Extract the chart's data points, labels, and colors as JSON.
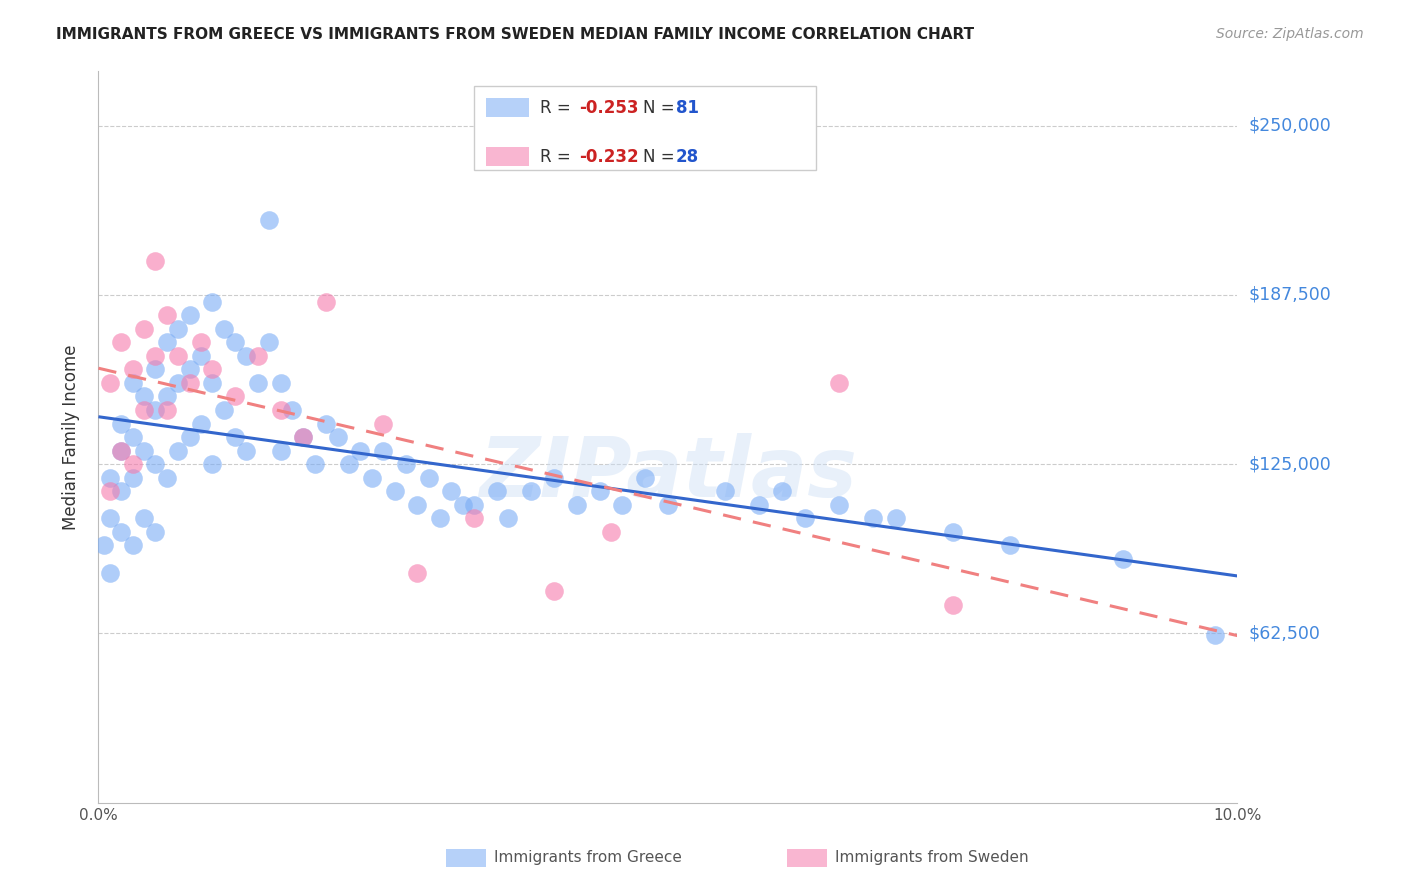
{
  "title": "IMMIGRANTS FROM GREECE VS IMMIGRANTS FROM SWEDEN MEDIAN FAMILY INCOME CORRELATION CHART",
  "source": "Source: ZipAtlas.com",
  "ylabel": "Median Family Income",
  "ytick_labels": [
    "$250,000",
    "$187,500",
    "$125,000",
    "$62,500"
  ],
  "ytick_values": [
    250000,
    187500,
    125000,
    62500
  ],
  "ymin": 0,
  "ymax": 270000,
  "xmin": 0.0,
  "xmax": 0.1,
  "greece_color": "#7aacf5",
  "sweden_color": "#f57aac",
  "greece_line_color": "#3366cc",
  "sweden_line_color": "#f08080",
  "title_fontsize": 11,
  "watermark": "ZIPatlas",
  "legend_r_greece": "-0.253",
  "legend_n_greece": "81",
  "legend_r_sweden": "-0.232",
  "legend_n_sweden": "28",
  "greece_x": [
    0.0005,
    0.001,
    0.001,
    0.001,
    0.002,
    0.002,
    0.002,
    0.002,
    0.003,
    0.003,
    0.003,
    0.003,
    0.004,
    0.004,
    0.004,
    0.005,
    0.005,
    0.005,
    0.005,
    0.006,
    0.006,
    0.006,
    0.007,
    0.007,
    0.007,
    0.008,
    0.008,
    0.008,
    0.009,
    0.009,
    0.01,
    0.01,
    0.01,
    0.011,
    0.011,
    0.012,
    0.012,
    0.013,
    0.013,
    0.014,
    0.015,
    0.015,
    0.016,
    0.016,
    0.017,
    0.018,
    0.019,
    0.02,
    0.021,
    0.022,
    0.023,
    0.024,
    0.025,
    0.026,
    0.027,
    0.028,
    0.029,
    0.03,
    0.031,
    0.032,
    0.033,
    0.035,
    0.036,
    0.038,
    0.04,
    0.042,
    0.044,
    0.046,
    0.048,
    0.05,
    0.055,
    0.058,
    0.06,
    0.062,
    0.065,
    0.068,
    0.07,
    0.075,
    0.08,
    0.09,
    0.098
  ],
  "greece_y": [
    95000,
    120000,
    105000,
    85000,
    140000,
    130000,
    115000,
    100000,
    155000,
    135000,
    120000,
    95000,
    150000,
    130000,
    105000,
    160000,
    145000,
    125000,
    100000,
    170000,
    150000,
    120000,
    175000,
    155000,
    130000,
    180000,
    160000,
    135000,
    165000,
    140000,
    185000,
    155000,
    125000,
    175000,
    145000,
    170000,
    135000,
    165000,
    130000,
    155000,
    215000,
    170000,
    155000,
    130000,
    145000,
    135000,
    125000,
    140000,
    135000,
    125000,
    130000,
    120000,
    130000,
    115000,
    125000,
    110000,
    120000,
    105000,
    115000,
    110000,
    110000,
    115000,
    105000,
    115000,
    120000,
    110000,
    115000,
    110000,
    120000,
    110000,
    115000,
    110000,
    115000,
    105000,
    110000,
    105000,
    105000,
    100000,
    95000,
    90000,
    62000
  ],
  "sweden_x": [
    0.001,
    0.001,
    0.002,
    0.002,
    0.003,
    0.003,
    0.004,
    0.004,
    0.005,
    0.005,
    0.006,
    0.006,
    0.007,
    0.008,
    0.009,
    0.01,
    0.012,
    0.014,
    0.016,
    0.018,
    0.02,
    0.025,
    0.028,
    0.033,
    0.04,
    0.045,
    0.065,
    0.075
  ],
  "sweden_y": [
    155000,
    115000,
    170000,
    130000,
    160000,
    125000,
    175000,
    145000,
    200000,
    165000,
    180000,
    145000,
    165000,
    155000,
    170000,
    160000,
    150000,
    165000,
    145000,
    135000,
    185000,
    140000,
    85000,
    105000,
    78000,
    100000,
    155000,
    73000
  ]
}
